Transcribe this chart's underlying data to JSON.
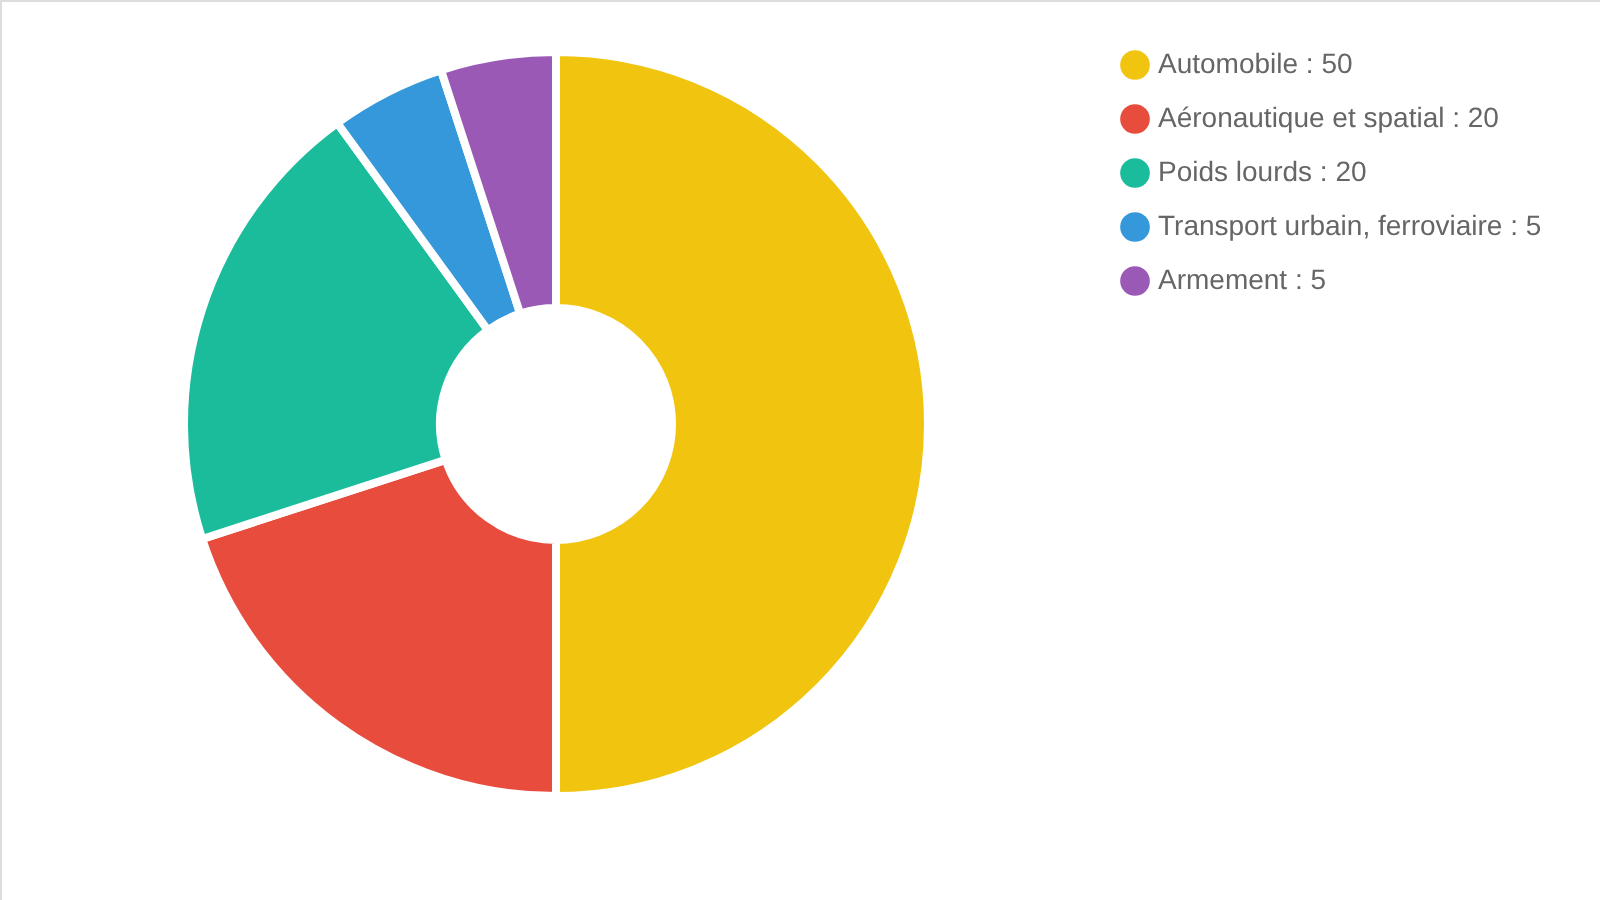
{
  "chart_data": {
    "type": "donut",
    "categories": [
      "Automobile : 50",
      "Aéronautique et spatial : 20",
      "Poids lourds : 20",
      "Transport urbain, ferroviaire : 5",
      "Armement : 5"
    ],
    "values": [
      50,
      20,
      20,
      5,
      5
    ],
    "colors": [
      "#f1c40f",
      "#e74c3c",
      "#1abc9c",
      "#3498db",
      "#9b59b6"
    ],
    "legend": "top right"
  }
}
